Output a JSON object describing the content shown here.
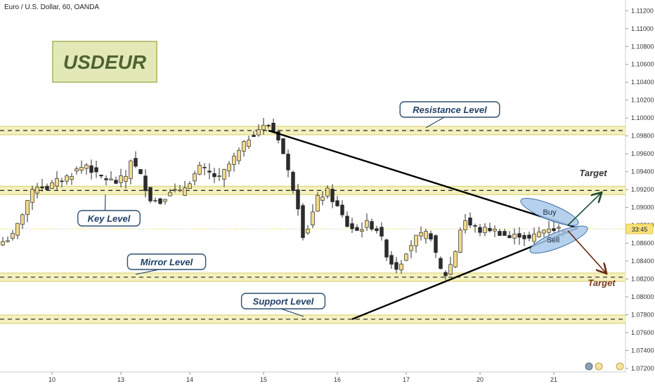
{
  "chart_data": {
    "type": "candlestick",
    "header": "Euro / U.S. Dollar, 60, OANDA",
    "title_badge": "USDEUR",
    "y_ticks": [
      "1.11200",
      "1.11000",
      "1.10800",
      "1.10600",
      "1.10400",
      "1.10200",
      "1.10000",
      "1.09800",
      "1.09600",
      "1.09400",
      "1.09200",
      "1.09000",
      "1.08800",
      "1.08600",
      "1.08400",
      "1.08200",
      "1.08000",
      "1.07800",
      "1.07600",
      "1.07400",
      "1.07200"
    ],
    "x_ticks": [
      {
        "label": "10",
        "bar": 10
      },
      {
        "label": "13",
        "bar": 24
      },
      {
        "label": "14",
        "bar": 38
      },
      {
        "label": "15",
        "bar": 53
      },
      {
        "label": "16",
        "bar": 68
      },
      {
        "label": "17",
        "bar": 82
      },
      {
        "label": "20",
        "bar": 97
      },
      {
        "label": "21",
        "bar": 112
      }
    ],
    "ylim": [
      1.0716,
      1.1132
    ],
    "bar_count": 115,
    "price_label": {
      "text": "33:45",
      "value": 1.0876
    },
    "levels": [
      {
        "name": "Resistance Level",
        "value": 1.0986
      },
      {
        "name": "Key Level",
        "value": 1.0919
      },
      {
        "name": "Mirror Level",
        "value": 1.0822
      },
      {
        "name": "Support Level",
        "value": 1.0775
      }
    ],
    "annotations": {
      "buy": "Buy",
      "sell": "Sell",
      "target_up": "Target",
      "target_down": "Target"
    },
    "close_path": [
      [
        0,
        1.0862
      ],
      [
        2,
        1.0868
      ],
      [
        3,
        1.088
      ],
      [
        5,
        1.0908
      ],
      [
        7,
        1.0925
      ],
      [
        9,
        1.0922
      ],
      [
        11,
        1.0929
      ],
      [
        13,
        1.0934
      ],
      [
        15,
        1.0942
      ],
      [
        17,
        1.0948
      ],
      [
        19,
        1.0936
      ],
      [
        21,
        1.0932
      ],
      [
        23,
        1.0928
      ],
      [
        25,
        1.0935
      ],
      [
        26,
        1.0954
      ],
      [
        28,
        1.0935
      ],
      [
        30,
        1.091
      ],
      [
        32,
        1.0906
      ],
      [
        34,
        1.092
      ],
      [
        36,
        1.0916
      ],
      [
        38,
        1.093
      ],
      [
        40,
        1.0944
      ],
      [
        42,
        1.0938
      ],
      [
        44,
        1.0932
      ],
      [
        46,
        1.0948
      ],
      [
        48,
        1.0962
      ],
      [
        50,
        1.0978
      ],
      [
        52,
        1.0988
      ],
      [
        54,
        1.0992
      ],
      [
        55,
        1.0985
      ],
      [
        56,
        1.0978
      ],
      [
        57,
        1.096
      ],
      [
        58,
        1.094
      ],
      [
        59,
        1.0922
      ],
      [
        60,
        1.0902
      ],
      [
        61,
        1.087
      ],
      [
        62,
        1.0878
      ],
      [
        64,
        1.091
      ],
      [
        66,
        1.0918
      ],
      [
        68,
        1.09
      ],
      [
        70,
        1.088
      ],
      [
        72,
        1.0874
      ],
      [
        74,
        1.0882
      ],
      [
        76,
        1.0876
      ],
      [
        77,
        1.0864
      ],
      [
        78,
        1.0848
      ],
      [
        79,
        1.0838
      ],
      [
        80,
        1.0833
      ],
      [
        81,
        1.084
      ],
      [
        82,
        1.0852
      ],
      [
        84,
        1.0866
      ],
      [
        86,
        1.087
      ],
      [
        87,
        1.0868
      ],
      [
        88,
        1.0846
      ],
      [
        89,
        1.083
      ],
      [
        90,
        1.0825
      ],
      [
        91,
        1.0836
      ],
      [
        92,
        1.0852
      ],
      [
        93,
        1.0876
      ],
      [
        94,
        1.0886
      ],
      [
        95,
        1.088
      ],
      [
        97,
        1.0874
      ],
      [
        99,
        1.0876
      ],
      [
        101,
        1.0872
      ],
      [
        103,
        1.0866
      ],
      [
        105,
        1.087
      ],
      [
        107,
        1.0864
      ],
      [
        109,
        1.0872
      ],
      [
        111,
        1.0878
      ],
      [
        112,
        1.0876
      ]
    ]
  }
}
